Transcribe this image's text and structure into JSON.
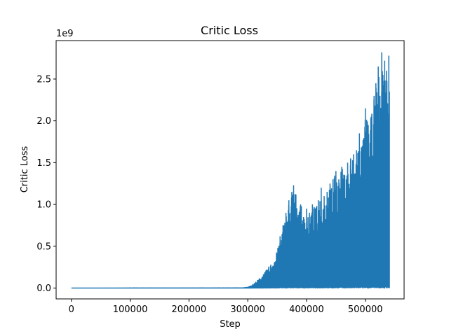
{
  "chart_data": {
    "type": "line",
    "title": "Critic Loss",
    "xlabel": "Step",
    "ylabel": "Critic Loss",
    "y_offset_label": "1e9",
    "xlim": [
      -26000,
      566000
    ],
    "ylim": [
      -0.13,
      2.96
    ],
    "x_ticks": [
      0,
      100000,
      200000,
      300000,
      400000,
      500000
    ],
    "x_tick_labels": [
      "0",
      "100000",
      "200000",
      "300000",
      "400000",
      "500000"
    ],
    "y_ticks": [
      0.0,
      0.5,
      1.0,
      1.5,
      2.0,
      2.5
    ],
    "y_tick_labels": [
      "0.0",
      "0.5",
      "1.0",
      "1.5",
      "2.0",
      "2.5"
    ],
    "grid": false,
    "series": [
      {
        "color": "#1f77b4",
        "description_of_envelope": "upper envelope of oscillating loss; lower bound near 0",
        "upper_envelope": {
          "x": [
            0,
            290000,
            300000,
            310000,
            320000,
            330000,
            340000,
            350000,
            355000,
            360000,
            365000,
            370000,
            375000,
            378000,
            382000,
            390000,
            395000,
            400000,
            405000,
            410000,
            415000,
            420000,
            425000,
            430000,
            435000,
            440000,
            445000,
            450000,
            455000,
            460000,
            465000,
            470000,
            475000,
            480000,
            485000,
            490000,
            495000,
            500000,
            505000,
            510000,
            515000,
            518000,
            522000,
            525000,
            528000,
            530000,
            533000,
            536000,
            540000,
            541000
          ],
          "y": [
            0.0,
            0.002,
            0.01,
            0.05,
            0.12,
            0.2,
            0.3,
            0.45,
            0.62,
            0.75,
            0.9,
            1.05,
            1.15,
            1.23,
            1.12,
            1.0,
            0.85,
            0.95,
            0.9,
            1.0,
            0.95,
            1.05,
            1.2,
            1.1,
            1.15,
            1.25,
            1.3,
            1.4,
            1.3,
            1.45,
            1.35,
            1.5,
            1.55,
            1.6,
            1.65,
            1.85,
            1.7,
            2.15,
            1.95,
            2.05,
            2.3,
            2.45,
            2.65,
            2.3,
            2.82,
            2.55,
            2.72,
            2.6,
            2.78,
            2.35
          ]
        },
        "lower_envelope_y": 0.0
      }
    ]
  }
}
